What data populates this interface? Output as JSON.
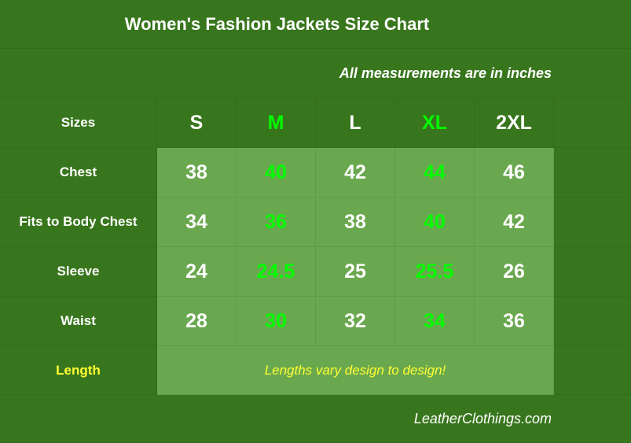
{
  "title": "Women's Fashion Jackets Size Chart",
  "note": "All measurements are in inches",
  "table": {
    "headers": [
      "Sizes",
      "S",
      "M",
      "L",
      "XL",
      "2XL"
    ],
    "rows": [
      {
        "label": "Chest",
        "values": [
          38,
          40,
          42,
          44,
          46
        ]
      },
      {
        "label": "Fits to Body Chest",
        "values": [
          34,
          36,
          38,
          40,
          42
        ]
      },
      {
        "label": "Sleeve",
        "values": [
          24,
          24.5,
          25,
          25.5,
          26
        ]
      },
      {
        "label": "Waist",
        "values": [
          28,
          30,
          32,
          34,
          36
        ]
      }
    ],
    "length": {
      "label": "Length",
      "note": "Lengths vary design to design!"
    }
  },
  "footer": "LeatherClothings.com"
}
